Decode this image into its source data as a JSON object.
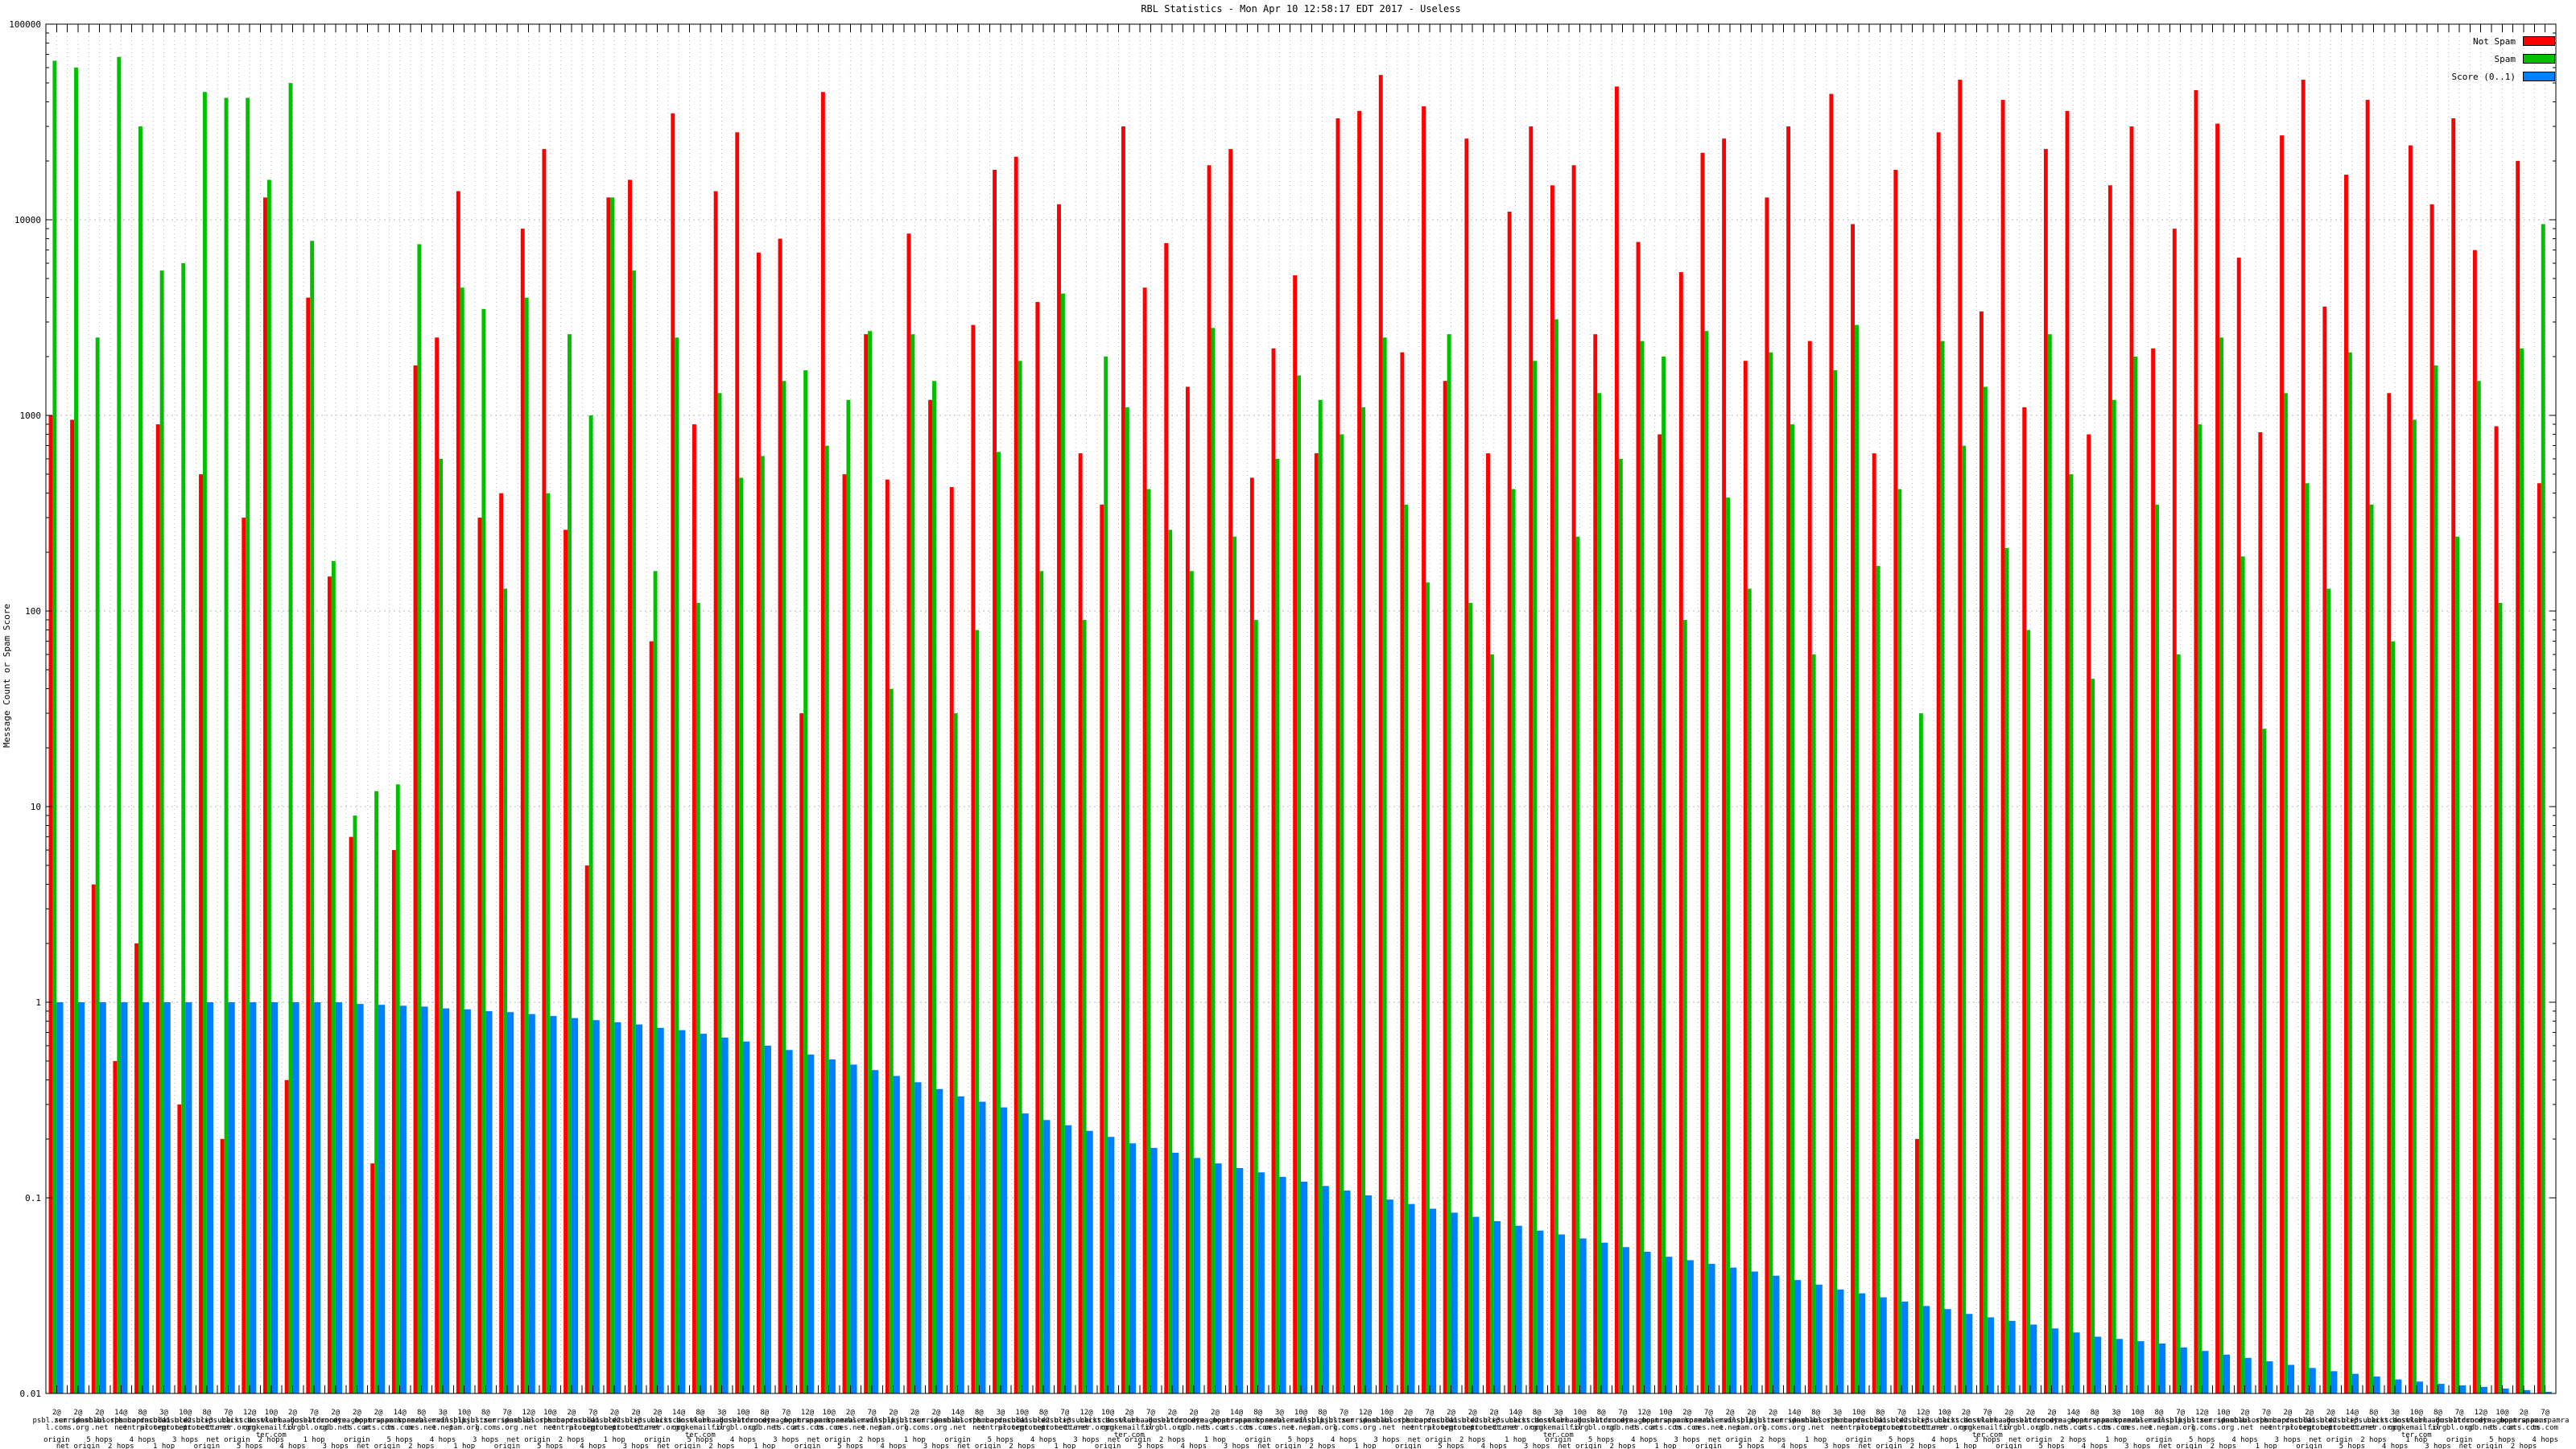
{
  "chart_data": {
    "type": "bar",
    "title": "RBL Statistics - Mon Apr 10 12:58:17 EDT 2017 - Useless",
    "ylabel": "Message Count or Spam Score",
    "yscale": "log",
    "ylim": [
      0.01,
      100000
    ],
    "ytick_labels": [
      "100000",
      "10000",
      "1000",
      "100",
      "10",
      "1",
      "0.1",
      "0.01"
    ],
    "grid": true,
    "legend_position": "top-right-inside",
    "series": [
      {
        "name": "Not Spam",
        "color": "#ff0000",
        "values": [
          1000,
          950,
          4,
          0.5,
          2,
          900,
          0.3,
          500,
          0.2,
          300,
          13000,
          0.4,
          4000,
          150,
          7,
          0.15,
          6,
          1800,
          2500,
          14000,
          300,
          400,
          9000,
          23000,
          260,
          5,
          13000,
          16000,
          70,
          35000,
          900,
          14000,
          28000,
          6800,
          8000,
          30,
          45000,
          500,
          2600,
          470,
          8500,
          1200,
          430,
          2900,
          18000,
          21000,
          3800,
          12000,
          640,
          350,
          30000,
          4500,
          7600,
          1400,
          19000,
          23000,
          480,
          2200,
          5200,
          640,
          33000,
          36000,
          55000,
          2100,
          38000,
          1500,
          26000,
          640,
          11000,
          30000,
          15000,
          19000,
          2600,
          48000,
          7700,
          800,
          5400,
          22000,
          26000,
          1900,
          13000,
          30000,
          2400,
          44000,
          9500,
          640,
          18000,
          0.2,
          28000,
          52000,
          3400,
          41000,
          1100,
          23000,
          36000,
          800,
          15000,
          30000,
          2200,
          9000,
          46000,
          31000,
          6400,
          820,
          27000,
          52000,
          3600,
          17000,
          41000,
          1300,
          24000,
          12000,
          33000,
          7000,
          880,
          20000,
          450
        ]
      },
      {
        "name": "Spam",
        "color": "#00c000",
        "values": [
          65000,
          60000,
          2500,
          68000,
          30000,
          5500,
          6000,
          45000,
          42000,
          42000,
          16000,
          50000,
          7800,
          180,
          9,
          12,
          13,
          7500,
          600,
          4500,
          3500,
          130,
          4000,
          400,
          2600,
          1000,
          13000,
          5500,
          160,
          2500,
          110,
          1300,
          480,
          620,
          1500,
          1700,
          700,
          1200,
          2700,
          40,
          2600,
          1500,
          30,
          80,
          650,
          1900,
          160,
          4200,
          90,
          2000,
          1100,
          420,
          260,
          160,
          2800,
          240,
          90,
          600,
          1600,
          1200,
          800,
          1100,
          2500,
          350,
          140,
          2600,
          110,
          60,
          420,
          1900,
          3100,
          240,
          1300,
          600,
          2400,
          2000,
          90,
          2700,
          380,
          130,
          2100,
          900,
          60,
          1700,
          2900,
          170,
          420,
          30,
          2400,
          700,
          1400,
          210,
          80,
          2600,
          500,
          45,
          1200,
          2000,
          350,
          60,
          900,
          2500,
          190,
          25,
          1300,
          450,
          130,
          2100,
          350,
          70,
          950,
          1800,
          240,
          1500,
          110,
          2200,
          9500
        ]
      },
      {
        "name": "Score (0..1)",
        "color": "#0080ff",
        "values": [
          1,
          1,
          1,
          1,
          1,
          1,
          1,
          1,
          1,
          1,
          1,
          1,
          1,
          1,
          0.98,
          0.97,
          0.96,
          0.95,
          0.93,
          0.92,
          0.9,
          0.89,
          0.87,
          0.85,
          0.83,
          0.81,
          0.79,
          0.77,
          0.74,
          0.72,
          0.69,
          0.66,
          0.63,
          0.6,
          0.57,
          0.54,
          0.51,
          0.48,
          0.45,
          0.42,
          0.39,
          0.36,
          0.33,
          0.31,
          0.29,
          0.27,
          0.25,
          0.235,
          0.22,
          0.205,
          0.19,
          0.18,
          0.17,
          0.16,
          0.15,
          0.142,
          0.135,
          0.128,
          0.121,
          0.115,
          0.109,
          0.103,
          0.098,
          0.093,
          0.088,
          0.084,
          0.08,
          0.076,
          0.072,
          0.068,
          0.065,
          0.062,
          0.059,
          0.056,
          0.053,
          0.05,
          0.048,
          0.046,
          0.044,
          0.042,
          0.04,
          0.038,
          0.036,
          0.034,
          0.0325,
          0.031,
          0.0295,
          0.028,
          0.027,
          0.0255,
          0.0245,
          0.0235,
          0.0225,
          0.0215,
          0.0205,
          0.0195,
          0.019,
          0.0185,
          0.018,
          0.0172,
          0.0165,
          0.0158,
          0.0152,
          0.0146,
          0.014,
          0.0135,
          0.013,
          0.0126,
          0.0122,
          0.0118,
          0.0115,
          0.0112,
          0.011,
          0.0108,
          0.0106,
          0.0104,
          0.0102
        ]
      }
    ],
    "categories": [
      [
        "2@",
        "psbl.surriel.com",
        "origin"
      ],
      [
        "2@",
        "zen.spamhaus.org",
        "net origin"
      ],
      [
        "2@",
        "dnsbl.sorbs.net",
        "5 hops"
      ],
      [
        "14@",
        "bl.spamcop.net",
        "2 hops"
      ],
      [
        "8@",
        "b.barracudacentral.org",
        "4 hops"
      ],
      [
        "3@",
        "dnsbl-1.uceprotect.net",
        "1 hop"
      ],
      [
        "10@",
        "dnsbl-2.uceprotect.net",
        "3 hops"
      ],
      [
        "8@",
        "dnsbl-3.uceprotect.net",
        "origin"
      ],
      [
        "7@",
        "ips.backscatterer.org",
        "net origin"
      ],
      [
        "12@",
        "list.dnswl.org",
        "5 hops"
      ],
      [
        "10@",
        "hostkarma.junkemailfilter.com",
        "2 hops"
      ],
      [
        "2@",
        "cbl.abuseat.org",
        "4 hops"
      ],
      [
        "7@",
        "dnsbl.dronebl.org",
        "1 hop"
      ],
      [
        "2@",
        "truncate.gbudb.net",
        "3 hops"
      ],
      [
        "2@",
        "dyna.spamrats.com",
        "origin"
      ],
      [
        "2@",
        "noptr.spamrats.com",
        "net origin"
      ],
      [
        "14@",
        "spam.spamrats.com",
        "5 hops"
      ],
      [
        "8@",
        "korea.services.net",
        "2 hops"
      ],
      [
        "3@",
        "bl.mailspike.net",
        "4 hops"
      ],
      [
        "10@",
        "dnsbl.justspam.org",
        "1 hop"
      ],
      [
        "8@",
        "psbl.surriel.com",
        "3 hops"
      ],
      [
        "7@",
        "zen.spamhaus.org",
        "origin"
      ],
      [
        "12@",
        "dnsbl.sorbs.net",
        "net origin"
      ],
      [
        "10@",
        "bl.spamcop.net",
        "5 hops"
      ],
      [
        "2@",
        "b.barracudacentral.org",
        "2 hops"
      ],
      [
        "7@",
        "dnsbl-1.uceprotect.net",
        "4 hops"
      ],
      [
        "2@",
        "dnsbl-2.uceprotect.net",
        "1 hop"
      ],
      [
        "2@",
        "dnsbl-3.uceprotect.net",
        "3 hops"
      ],
      [
        "2@",
        "ips.backscatterer.org",
        "origin"
      ],
      [
        "14@",
        "list.dnswl.org",
        "net origin"
      ],
      [
        "8@",
        "hostkarma.junkemailfilter.com",
        "5 hops"
      ],
      [
        "3@",
        "cbl.abuseat.org",
        "2 hops"
      ],
      [
        "10@",
        "dnsbl.dronebl.org",
        "4 hops"
      ],
      [
        "8@",
        "truncate.gbudb.net",
        "1 hop"
      ],
      [
        "7@",
        "dyna.spamrats.com",
        "3 hops"
      ],
      [
        "12@",
        "noptr.spamrats.com",
        "origin"
      ],
      [
        "10@",
        "spam.spamrats.com",
        "net origin"
      ],
      [
        "2@",
        "korea.services.net",
        "5 hops"
      ],
      [
        "7@",
        "bl.mailspike.net",
        "2 hops"
      ],
      [
        "2@",
        "dnsbl.justspam.org",
        "4 hops"
      ],
      [
        "2@",
        "psbl.surriel.com",
        "1 hop"
      ],
      [
        "2@",
        "zen.spamhaus.org",
        "3 hops"
      ],
      [
        "14@",
        "dnsbl.sorbs.net",
        "origin"
      ],
      [
        "8@",
        "bl.spamcop.net",
        "net origin"
      ],
      [
        "3@",
        "b.barracudacentral.org",
        "5 hops"
      ],
      [
        "10@",
        "dnsbl-1.uceprotect.net",
        "2 hops"
      ],
      [
        "8@",
        "dnsbl-2.uceprotect.net",
        "4 hops"
      ],
      [
        "7@",
        "dnsbl-3.uceprotect.net",
        "1 hop"
      ],
      [
        "12@",
        "ips.backscatterer.org",
        "3 hops"
      ],
      [
        "10@",
        "list.dnswl.org",
        "origin"
      ],
      [
        "2@",
        "hostkarma.junkemailfilter.com",
        "net origin"
      ],
      [
        "7@",
        "cbl.abuseat.org",
        "5 hops"
      ],
      [
        "2@",
        "dnsbl.dronebl.org",
        "2 hops"
      ],
      [
        "2@",
        "truncate.gbudb.net",
        "4 hops"
      ],
      [
        "2@",
        "dyna.spamrats.com",
        "1 hop"
      ],
      [
        "14@",
        "noptr.spamrats.com",
        "3 hops"
      ],
      [
        "8@",
        "spam.spamrats.com",
        "origin"
      ],
      [
        "3@",
        "korea.services.net",
        "net origin"
      ],
      [
        "10@",
        "bl.mailspike.net",
        "5 hops"
      ],
      [
        "8@",
        "dnsbl.justspam.org",
        "2 hops"
      ],
      [
        "7@",
        "psbl.surriel.com",
        "4 hops"
      ],
      [
        "12@",
        "zen.spamhaus.org",
        "1 hop"
      ],
      [
        "10@",
        "dnsbl.sorbs.net",
        "3 hops"
      ],
      [
        "2@",
        "bl.spamcop.net",
        "origin"
      ],
      [
        "7@",
        "b.barracudacentral.org",
        "net origin"
      ],
      [
        "2@",
        "dnsbl-1.uceprotect.net",
        "5 hops"
      ],
      [
        "2@",
        "dnsbl-2.uceprotect.net",
        "2 hops"
      ],
      [
        "2@",
        "dnsbl-3.uceprotect.net",
        "4 hops"
      ],
      [
        "14@",
        "ips.backscatterer.org",
        "1 hop"
      ],
      [
        "8@",
        "list.dnswl.org",
        "3 hops"
      ],
      [
        "3@",
        "hostkarma.junkemailfilter.com",
        "origin"
      ],
      [
        "10@",
        "cbl.abuseat.org",
        "net origin"
      ],
      [
        "8@",
        "dnsbl.dronebl.org",
        "5 hops"
      ],
      [
        "7@",
        "truncate.gbudb.net",
        "2 hops"
      ],
      [
        "12@",
        "dyna.spamrats.com",
        "4 hops"
      ],
      [
        "10@",
        "noptr.spamrats.com",
        "1 hop"
      ],
      [
        "2@",
        "spam.spamrats.com",
        "3 hops"
      ],
      [
        "7@",
        "korea.services.net",
        "origin"
      ],
      [
        "2@",
        "bl.mailspike.net",
        "net origin"
      ],
      [
        "2@",
        "dnsbl.justspam.org",
        "5 hops"
      ],
      [
        "2@",
        "psbl.surriel.com",
        "2 hops"
      ],
      [
        "14@",
        "zen.spamhaus.org",
        "4 hops"
      ],
      [
        "8@",
        "dnsbl.sorbs.net",
        "1 hop"
      ],
      [
        "3@",
        "bl.spamcop.net",
        "3 hops"
      ],
      [
        "10@",
        "b.barracudacentral.org",
        "origin"
      ],
      [
        "8@",
        "dnsbl-1.uceprotect.net",
        "net origin"
      ],
      [
        "7@",
        "dnsbl-2.uceprotect.net",
        "5 hops"
      ],
      [
        "12@",
        "dnsbl-3.uceprotect.net",
        "2 hops"
      ],
      [
        "10@",
        "ips.backscatterer.org",
        "4 hops"
      ],
      [
        "2@",
        "list.dnswl.org",
        "1 hop"
      ],
      [
        "7@",
        "hostkarma.junkemailfilter.com",
        "3 hops"
      ],
      [
        "2@",
        "cbl.abuseat.org",
        "origin"
      ],
      [
        "2@",
        "dnsbl.dronebl.org",
        "net origin"
      ],
      [
        "2@",
        "truncate.gbudb.net",
        "5 hops"
      ],
      [
        "14@",
        "dyna.spamrats.com",
        "2 hops"
      ],
      [
        "8@",
        "noptr.spamrats.com",
        "4 hops"
      ],
      [
        "3@",
        "spam.spamrats.com",
        "1 hop"
      ],
      [
        "10@",
        "korea.services.net",
        "3 hops"
      ],
      [
        "8@",
        "bl.mailspike.net",
        "origin"
      ],
      [
        "7@",
        "dnsbl.justspam.org",
        "net origin"
      ],
      [
        "12@",
        "psbl.surriel.com",
        "5 hops"
      ],
      [
        "10@",
        "zen.spamhaus.org",
        "2 hops"
      ],
      [
        "2@",
        "dnsbl.sorbs.net",
        "4 hops"
      ],
      [
        "7@",
        "bl.spamcop.net",
        "1 hop"
      ],
      [
        "2@",
        "b.barracudacentral.org",
        "3 hops"
      ],
      [
        "2@",
        "dnsbl-1.uceprotect.net",
        "origin"
      ],
      [
        "2@",
        "dnsbl-2.uceprotect.net",
        "net origin"
      ],
      [
        "14@",
        "dnsbl-3.uceprotect.net",
        "5 hops"
      ],
      [
        "8@",
        "ips.backscatterer.org",
        "2 hops"
      ],
      [
        "3@",
        "list.dnswl.org",
        "4 hops"
      ],
      [
        "10@",
        "hostkarma.junkemailfilter.com",
        "1 hop"
      ],
      [
        "8@",
        "cbl.abuseat.org",
        "3 hops"
      ],
      [
        "7@",
        "dnsbl.dronebl.org",
        "origin"
      ],
      [
        "12@",
        "truncate.gbudb.net",
        "net origin"
      ],
      [
        "10@",
        "dyna.spamrats.com",
        "5 hops"
      ],
      [
        "2@",
        "noptr.spamrats.com",
        "2 hops"
      ],
      [
        "7@",
        "spam.spamrats.com",
        "4 hops"
      ]
    ]
  }
}
